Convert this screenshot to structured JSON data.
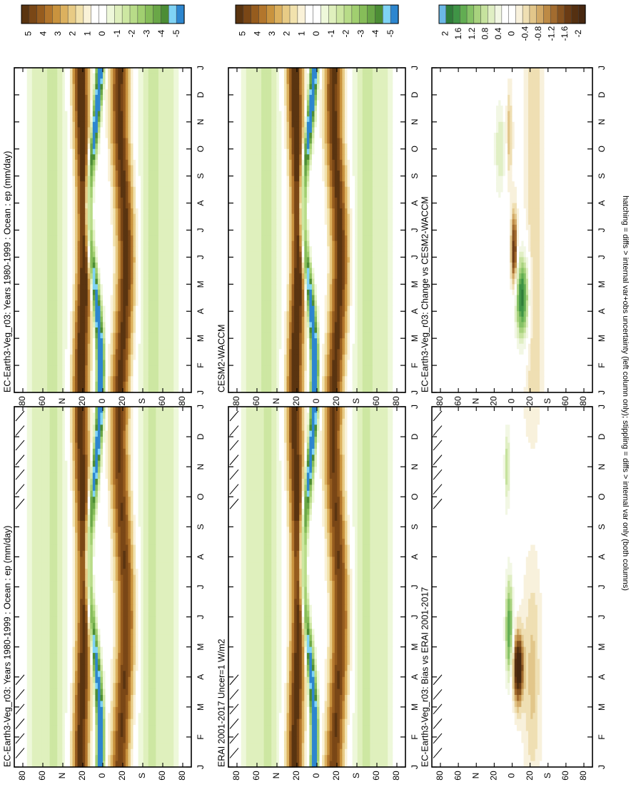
{
  "footnote": "hatching = diffs > internal var+obs uncertainty (left column only); stippling = diffs > internal var only (both columns)",
  "chart_data": [
    {
      "type": "heatmap",
      "title": "EC-Earth3-Veg_r03: Years 1980-1999 : Ocean : ep (mm/day)",
      "x": [
        "J",
        "F",
        "M",
        "A",
        "M",
        "J",
        "J",
        "A",
        "S",
        "O",
        "N",
        "D",
        "J"
      ],
      "y": [
        "80",
        "60",
        "N",
        "20",
        "0",
        "20",
        "S",
        "60",
        "80"
      ],
      "xlabel": "",
      "ylabel": "",
      "hatching": true,
      "colorbar": {
        "ticks": [
          "5",
          "4",
          "3",
          "2",
          "1",
          "0",
          "-1",
          "-2",
          "-3",
          "-4",
          "-5"
        ],
        "range": [
          -5.5,
          5.5
        ]
      }
    },
    {
      "type": "heatmap",
      "title": "EC-Earth3-Veg_r03: Years 1980-1999 : Ocean : ep (mm/day)",
      "x": [
        "J",
        "F",
        "M",
        "A",
        "M",
        "J",
        "J",
        "A",
        "S",
        "O",
        "N",
        "D",
        "J"
      ],
      "y": [
        "80",
        "60",
        "N",
        "20",
        "0",
        "20",
        "S",
        "60",
        "80"
      ],
      "xlabel": "",
      "ylabel": "",
      "hatching": false,
      "colorbar": {
        "ticks": [
          "5",
          "4",
          "3",
          "2",
          "1",
          "0",
          "-1",
          "-2",
          "-3",
          "-4",
          "-5"
        ],
        "range": [
          -5.5,
          5.5
        ]
      }
    },
    {
      "type": "heatmap",
      "title": "ERAI 2001-2017 Uncer=1 W/m2",
      "x": [
        "J",
        "F",
        "M",
        "A",
        "M",
        "J",
        "J",
        "A",
        "S",
        "O",
        "N",
        "D",
        "J"
      ],
      "y": [
        "80",
        "60",
        "N",
        "20",
        "0",
        "20",
        "S",
        "60",
        "80"
      ],
      "xlabel": "",
      "ylabel": "",
      "hatching": true,
      "colorbar": {
        "ticks": [
          "5",
          "4",
          "3",
          "2",
          "1",
          "0",
          "-1",
          "-2",
          "-3",
          "-4",
          "-5"
        ],
        "range": [
          -5.5,
          5.5
        ]
      }
    },
    {
      "type": "heatmap",
      "title": "CESM2-WACCM",
      "x": [
        "J",
        "F",
        "M",
        "A",
        "M",
        "J",
        "J",
        "A",
        "S",
        "O",
        "N",
        "D",
        "J"
      ],
      "y": [
        "80",
        "60",
        "N",
        "20",
        "0",
        "20",
        "S",
        "60",
        "80"
      ],
      "xlabel": "",
      "ylabel": "",
      "hatching": false,
      "colorbar": {
        "ticks": [
          "5",
          "4",
          "3",
          "2",
          "1",
          "0",
          "-1",
          "-2",
          "-3",
          "-4",
          "-5"
        ],
        "range": [
          -5.5,
          5.5
        ]
      }
    },
    {
      "type": "heatmap",
      "title": "EC-Earth3-Veg_r03: Bias vs ERAI 2001-2017",
      "x": [
        "J",
        "F",
        "M",
        "A",
        "M",
        "J",
        "J",
        "A",
        "S",
        "O",
        "N",
        "D",
        "J"
      ],
      "y": [
        "80",
        "60",
        "N",
        "20",
        "0",
        "20",
        "S",
        "60",
        "80"
      ],
      "xlabel": "",
      "ylabel": "",
      "hatching": true,
      "colorbar": {
        "ticks": [
          "2",
          "1.6",
          "1.2",
          "0.8",
          "0.4",
          "0",
          "-0.4",
          "-0.8",
          "-1.2",
          "-1.6",
          "-2"
        ],
        "range": [
          -2.2,
          2.2
        ]
      }
    },
    {
      "type": "heatmap",
      "title": "EC-Earth3-Veg_r03: Change vs CESM2-WACCM",
      "x": [
        "J",
        "F",
        "M",
        "A",
        "M",
        "J",
        "J",
        "A",
        "S",
        "O",
        "N",
        "D",
        "J"
      ],
      "y": [
        "80",
        "60",
        "N",
        "20",
        "0",
        "20",
        "S",
        "60",
        "80"
      ],
      "xlabel": "",
      "ylabel": "",
      "hatching": false,
      "colorbar": {
        "ticks": [
          "2",
          "1.6",
          "1.2",
          "0.8",
          "0.4",
          "0",
          "-0.4",
          "-0.8",
          "-1.2",
          "-1.6",
          "-2"
        ],
        "range": [
          -2.2,
          2.2
        ]
      }
    }
  ],
  "colors": {
    "bands": [
      "#5a3410",
      "#7a4716",
      "#965c1e",
      "#b3762c",
      "#c9933e",
      "#dcb15f",
      "#e8cb85",
      "#f2e2ad",
      "#faf2d8",
      "#ffffff",
      "#ffffff",
      "#eef8da",
      "#dff0bd",
      "#cde7a2",
      "#b8dc88",
      "#a1cf70",
      "#86bd59",
      "#6aa747",
      "#4c8d35",
      "#7fd3f5",
      "#2d86cf"
    ],
    "diff_bands": [
      "#6bb8e6",
      "#2f7d3a",
      "#3f9446",
      "#62ad52",
      "#86c266",
      "#a8d27e",
      "#c6e29e",
      "#e0efc4",
      "#f2f7e4",
      "#ffffff",
      "#ffffff",
      "#f8f1dc",
      "#efdfb3",
      "#e2c68a",
      "#d2a966",
      "#bd8a45",
      "#a36c2f",
      "#86521f",
      "#6a3b14",
      "#553011",
      "#482810"
    ]
  }
}
